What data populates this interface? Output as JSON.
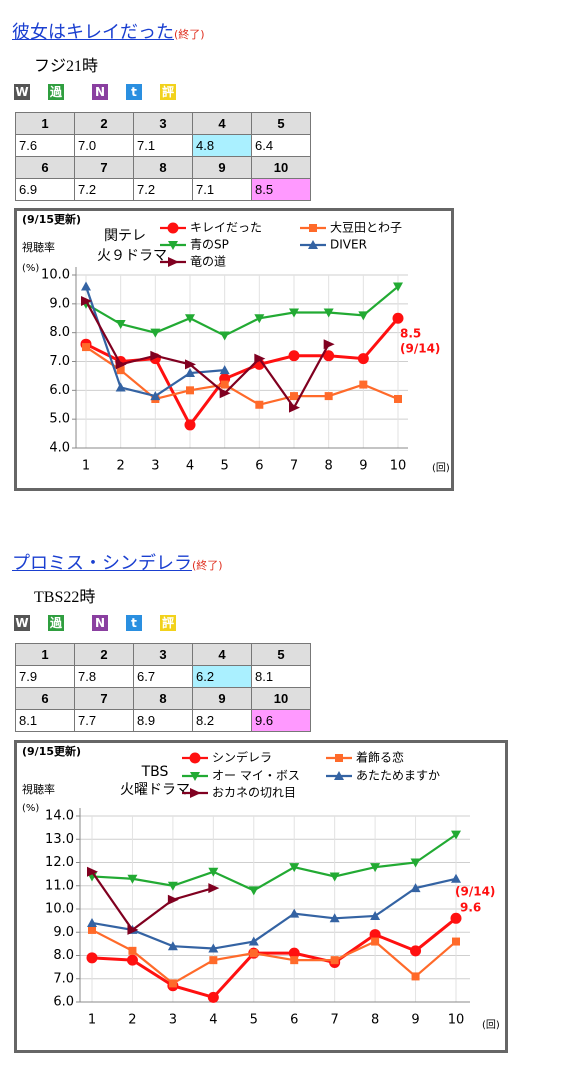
{
  "sections": [
    {
      "title": "彼女はキレイだった",
      "status": "(終了)",
      "station": "フジ21時",
      "icons": [
        {
          "label": "W",
          "color": "#555555"
        },
        {
          "label": "過",
          "color": "#2f9e3f"
        },
        {
          "label": "N",
          "color": "#8a3fa0"
        },
        {
          "label": "t",
          "color": "#2a8fe0"
        },
        {
          "label": "評",
          "color": "#f2d21b"
        }
      ],
      "table": {
        "episodes": [
          [
            "1",
            "2",
            "3",
            "4",
            "5"
          ],
          [
            "6",
            "7",
            "8",
            "9",
            "10"
          ]
        ],
        "ratings": [
          [
            "7.6",
            "7.0",
            "7.1",
            "4.8",
            "6.4"
          ],
          [
            "6.9",
            "7.2",
            "7.2",
            "7.1",
            "8.5"
          ]
        ],
        "highlight": [
          {
            "row": 0,
            "col": 3,
            "color": "#aaf0ff"
          },
          {
            "row": 1,
            "col": 4,
            "color": "#ff99ff"
          }
        ]
      }
    },
    {
      "title": "プロミス・シンデレラ",
      "status": "(終了)",
      "station": "TBS22時",
      "icons": [
        {
          "label": "W",
          "color": "#555555"
        },
        {
          "label": "過",
          "color": "#2f9e3f"
        },
        {
          "label": "N",
          "color": "#8a3fa0"
        },
        {
          "label": "t",
          "color": "#2a8fe0"
        },
        {
          "label": "評",
          "color": "#f2d21b"
        }
      ],
      "table": {
        "episodes": [
          [
            "1",
            "2",
            "3",
            "4",
            "5"
          ],
          [
            "6",
            "7",
            "8",
            "9",
            "10"
          ]
        ],
        "ratings": [
          [
            "7.9",
            "7.8",
            "6.7",
            "6.2",
            "8.1"
          ],
          [
            "8.1",
            "7.7",
            "8.9",
            "8.2",
            "9.6"
          ]
        ],
        "highlight": [
          {
            "row": 0,
            "col": 3,
            "color": "#aaf0ff"
          },
          {
            "row": 1,
            "col": 4,
            "color": "#ff99ff"
          }
        ]
      }
    }
  ],
  "chart_data": [
    {
      "type": "line",
      "update": "(9/15更新)",
      "network": "関テレ",
      "slot": "火９ドラマ",
      "y_label": "視聴率",
      "y_unit": "(%)",
      "x_label": "(回)",
      "grid": true,
      "categories": [
        "1",
        "2",
        "3",
        "4",
        "5",
        "6",
        "7",
        "8",
        "9",
        "10"
      ],
      "ylim": [
        4,
        10
      ],
      "yticks": [
        {
          "value": 4,
          "label": "4.0"
        },
        {
          "value": 5,
          "label": "5.0"
        },
        {
          "value": 6,
          "label": "6.0"
        },
        {
          "value": 7,
          "label": "7.0"
        },
        {
          "value": 8,
          "label": "8.0"
        },
        {
          "value": 9,
          "label": "9.0"
        },
        {
          "value": 10,
          "label": "10.0"
        }
      ],
      "series": [
        {
          "name": "キレイだった",
          "color": "#ff1010",
          "marker": "circle",
          "values": [
            7.6,
            7.0,
            7.1,
            4.8,
            6.4,
            6.9,
            7.2,
            7.2,
            7.1,
            8.5
          ]
        },
        {
          "name": "大豆田とわ子",
          "color": "#ff6a2a",
          "marker": "square",
          "values": [
            7.5,
            6.7,
            5.7,
            6.0,
            6.2,
            5.5,
            5.8,
            5.8,
            6.2,
            5.7
          ]
        },
        {
          "name": "青のSP",
          "color": "#22aa33",
          "marker": "tri-down",
          "values": [
            9.0,
            8.3,
            8.0,
            8.5,
            7.9,
            8.5,
            8.7,
            8.7,
            8.6,
            9.6
          ]
        },
        {
          "name": "DIVER",
          "color": "#3463a3",
          "marker": "tri-up",
          "values": [
            9.6,
            6.1,
            5.8,
            6.6,
            6.7,
            null,
            null,
            null,
            null,
            null
          ]
        },
        {
          "name": "竜の道",
          "color": "#800020",
          "marker": "arrow",
          "values": [
            9.1,
            6.9,
            7.2,
            6.9,
            5.9,
            7.1,
            5.4,
            7.6,
            null,
            null
          ]
        }
      ],
      "annotations": [
        {
          "text": "8.5",
          "color": "#ff1010"
        },
        {
          "text": "(9/14)",
          "color": "#ff1010"
        }
      ]
    },
    {
      "type": "line",
      "update": "(9/15更新)",
      "network": "TBS",
      "slot": "火曜ドラマ",
      "y_label": "視聴率",
      "y_unit": "(%)",
      "x_label": "(回)",
      "grid": true,
      "categories": [
        "1",
        "2",
        "3",
        "4",
        "5",
        "6",
        "7",
        "8",
        "9",
        "10"
      ],
      "ylim": [
        6,
        14
      ],
      "yticks": [
        {
          "value": 6,
          "label": "6.0"
        },
        {
          "value": 7,
          "label": "7.0"
        },
        {
          "value": 8,
          "label": "8.0"
        },
        {
          "value": 9,
          "label": "9.0"
        },
        {
          "value": 10,
          "label": "10.0"
        },
        {
          "value": 11,
          "label": "11.0"
        },
        {
          "value": 12,
          "label": "12.0"
        },
        {
          "value": 13,
          "label": "13.0"
        },
        {
          "value": 14,
          "label": "14.0"
        }
      ],
      "series": [
        {
          "name": "シンデレラ",
          "color": "#ff1010",
          "marker": "circle",
          "values": [
            7.9,
            7.8,
            6.7,
            6.2,
            8.1,
            8.1,
            7.7,
            8.9,
            8.2,
            9.6
          ]
        },
        {
          "name": "着飾る恋",
          "color": "#ff6a2a",
          "marker": "square",
          "values": [
            9.1,
            8.2,
            6.8,
            7.8,
            8.1,
            7.8,
            7.8,
            8.6,
            7.1,
            8.6
          ]
        },
        {
          "name": "オー マイ・ボス",
          "color": "#22aa33",
          "marker": "tri-down",
          "values": [
            11.4,
            11.3,
            11.0,
            11.6,
            10.8,
            11.8,
            11.4,
            11.8,
            12.0,
            13.2
          ]
        },
        {
          "name": "あたためますか",
          "color": "#3463a3",
          "marker": "tri-up",
          "values": [
            9.4,
            9.1,
            8.4,
            8.3,
            8.6,
            9.8,
            9.6,
            9.7,
            10.9,
            11.3
          ]
        },
        {
          "name": "おカネの切れ目",
          "color": "#800020",
          "marker": "arrow",
          "values": [
            11.6,
            9.1,
            10.4,
            10.9,
            null,
            null,
            null,
            null,
            null,
            null
          ]
        }
      ],
      "annotations": [
        {
          "text": "(9/14)",
          "color": "#ff1010"
        },
        {
          "text": "9.6",
          "color": "#ff1010"
        }
      ]
    }
  ]
}
